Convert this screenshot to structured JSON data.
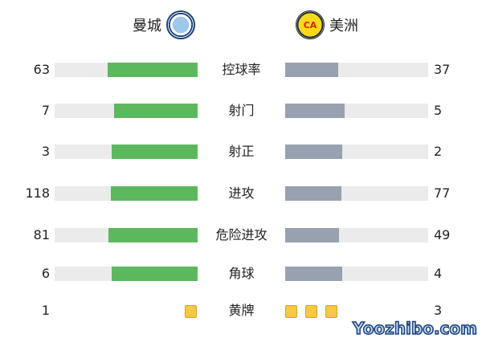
{
  "home": {
    "name": "曼城",
    "logo": "manchester-city-crest"
  },
  "away": {
    "name": "美洲",
    "logo": "club-america-crest",
    "logo_text": "CA"
  },
  "colors": {
    "home_bar": "#5cb85c",
    "away_bar": "#98a1b0",
    "track": "#ebebeb",
    "yellow_card": "#f6c843"
  },
  "stats": [
    {
      "label": "控球率",
      "home": "63",
      "away": "37"
    },
    {
      "label": "射门",
      "home": "7",
      "away": "5"
    },
    {
      "label": "射正",
      "home": "3",
      "away": "2"
    },
    {
      "label": "进攻",
      "home": "118",
      "away": "77"
    },
    {
      "label": "危险进攻",
      "home": "81",
      "away": "49"
    },
    {
      "label": "角球",
      "home": "6",
      "away": "4"
    }
  ],
  "yellow_cards": {
    "label": "黄牌",
    "home": "1",
    "away": "3"
  },
  "watermark": "Yoozhibo.com"
}
